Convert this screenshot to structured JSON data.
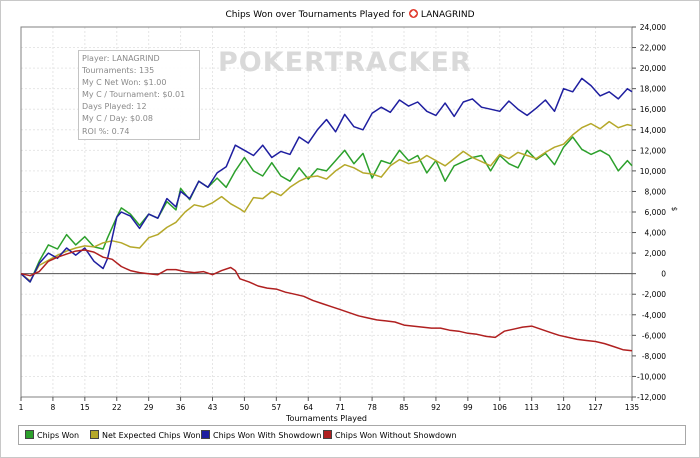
{
  "chart_data": {
    "type": "line",
    "title": "Chips Won over Tournaments Played for",
    "player_badge": "LANAGRIND",
    "xlabel": "Tournaments Played",
    "ylabel": "$",
    "xlim": [
      1,
      135
    ],
    "ylim": [
      -12000,
      24000
    ],
    "x_ticks": [
      1,
      8,
      15,
      22,
      29,
      36,
      43,
      50,
      57,
      64,
      71,
      78,
      85,
      92,
      99,
      106,
      113,
      120,
      127,
      135
    ],
    "y_ticks": [
      -12000,
      -10000,
      -8000,
      -6000,
      -4000,
      -2000,
      0,
      2000,
      4000,
      6000,
      8000,
      10000,
      12000,
      14000,
      16000,
      18000,
      20000,
      22000,
      24000
    ],
    "y_tick_labels": [
      "-12,000",
      "-10,000",
      "-8,000",
      "-6,000",
      "-4,000",
      "-2,000",
      "0",
      "2,000",
      "4,000",
      "6,000",
      "8,000",
      "10,000",
      "12,000",
      "14,000",
      "16,000",
      "18,000",
      "20,000",
      "22,000",
      "24,000"
    ],
    "grid": true,
    "series": [
      {
        "name": "Chips Won",
        "color": "#2ca02c",
        "points": [
          [
            1,
            0
          ],
          [
            3,
            -800
          ],
          [
            5,
            1200
          ],
          [
            7,
            2800
          ],
          [
            9,
            2400
          ],
          [
            11,
            3800
          ],
          [
            13,
            2800
          ],
          [
            15,
            3600
          ],
          [
            17,
            2600
          ],
          [
            19,
            2400
          ],
          [
            20,
            3500
          ],
          [
            22,
            5500
          ],
          [
            23,
            6400
          ],
          [
            25,
            5800
          ],
          [
            27,
            4700
          ],
          [
            29,
            5800
          ],
          [
            31,
            5400
          ],
          [
            33,
            7000
          ],
          [
            35,
            6200
          ],
          [
            36,
            8300
          ],
          [
            38,
            7200
          ],
          [
            40,
            9000
          ],
          [
            42,
            8400
          ],
          [
            44,
            9300
          ],
          [
            46,
            8400
          ],
          [
            48,
            10000
          ],
          [
            50,
            11300
          ],
          [
            52,
            10000
          ],
          [
            54,
            9500
          ],
          [
            56,
            10800
          ],
          [
            58,
            9500
          ],
          [
            60,
            9000
          ],
          [
            62,
            10300
          ],
          [
            64,
            9200
          ],
          [
            66,
            10200
          ],
          [
            68,
            10000
          ],
          [
            70,
            11000
          ],
          [
            72,
            12000
          ],
          [
            74,
            10700
          ],
          [
            76,
            11700
          ],
          [
            78,
            9300
          ],
          [
            80,
            11000
          ],
          [
            82,
            10700
          ],
          [
            84,
            12000
          ],
          [
            86,
            11000
          ],
          [
            88,
            11500
          ],
          [
            90,
            9800
          ],
          [
            92,
            11000
          ],
          [
            94,
            9000
          ],
          [
            96,
            10500
          ],
          [
            98,
            10900
          ],
          [
            100,
            11300
          ],
          [
            102,
            11500
          ],
          [
            104,
            10000
          ],
          [
            106,
            11500
          ],
          [
            108,
            10700
          ],
          [
            110,
            10300
          ],
          [
            112,
            12000
          ],
          [
            114,
            11100
          ],
          [
            116,
            11700
          ],
          [
            118,
            10600
          ],
          [
            120,
            12300
          ],
          [
            122,
            13300
          ],
          [
            124,
            12100
          ],
          [
            126,
            11600
          ],
          [
            128,
            12000
          ],
          [
            130,
            11500
          ],
          [
            132,
            10000
          ],
          [
            134,
            11000
          ],
          [
            135,
            10500
          ]
        ]
      },
      {
        "name": "Net Expected Chips Won",
        "color": "#b5a82a",
        "points": [
          [
            1,
            0
          ],
          [
            3,
            -700
          ],
          [
            5,
            800
          ],
          [
            7,
            1300
          ],
          [
            9,
            1800
          ],
          [
            11,
            2200
          ],
          [
            13,
            2500
          ],
          [
            15,
            2700
          ],
          [
            17,
            2600
          ],
          [
            19,
            3000
          ],
          [
            21,
            3200
          ],
          [
            23,
            3000
          ],
          [
            25,
            2600
          ],
          [
            27,
            2500
          ],
          [
            29,
            3500
          ],
          [
            31,
            3800
          ],
          [
            33,
            4500
          ],
          [
            35,
            5000
          ],
          [
            37,
            6000
          ],
          [
            39,
            6700
          ],
          [
            41,
            6500
          ],
          [
            43,
            6900
          ],
          [
            45,
            7500
          ],
          [
            47,
            6800
          ],
          [
            49,
            6300
          ],
          [
            50,
            6000
          ],
          [
            52,
            7400
          ],
          [
            54,
            7300
          ],
          [
            56,
            8000
          ],
          [
            58,
            7600
          ],
          [
            60,
            8400
          ],
          [
            62,
            9000
          ],
          [
            64,
            9400
          ],
          [
            66,
            9500
          ],
          [
            68,
            9200
          ],
          [
            70,
            10000
          ],
          [
            72,
            10600
          ],
          [
            74,
            10300
          ],
          [
            76,
            9800
          ],
          [
            78,
            9700
          ],
          [
            80,
            9400
          ],
          [
            82,
            10500
          ],
          [
            84,
            11100
          ],
          [
            86,
            10700
          ],
          [
            88,
            10900
          ],
          [
            90,
            11500
          ],
          [
            92,
            11000
          ],
          [
            94,
            10500
          ],
          [
            96,
            11200
          ],
          [
            98,
            11900
          ],
          [
            100,
            11300
          ],
          [
            102,
            10900
          ],
          [
            104,
            10500
          ],
          [
            106,
            11600
          ],
          [
            108,
            11200
          ],
          [
            110,
            11800
          ],
          [
            112,
            11500
          ],
          [
            114,
            11200
          ],
          [
            116,
            11800
          ],
          [
            118,
            12300
          ],
          [
            120,
            12600
          ],
          [
            122,
            13500
          ],
          [
            124,
            14200
          ],
          [
            126,
            14600
          ],
          [
            128,
            14100
          ],
          [
            130,
            14800
          ],
          [
            132,
            14200
          ],
          [
            134,
            14500
          ],
          [
            135,
            14400
          ]
        ]
      },
      {
        "name": "Chips Won With Showdown",
        "color": "#1f1fa0",
        "points": [
          [
            1,
            0
          ],
          [
            3,
            -800
          ],
          [
            5,
            1000
          ],
          [
            7,
            2000
          ],
          [
            9,
            1500
          ],
          [
            11,
            2500
          ],
          [
            13,
            1800
          ],
          [
            15,
            2500
          ],
          [
            17,
            1200
          ],
          [
            19,
            500
          ],
          [
            20,
            1500
          ],
          [
            22,
            5500
          ],
          [
            23,
            6000
          ],
          [
            25,
            5600
          ],
          [
            27,
            4400
          ],
          [
            29,
            5800
          ],
          [
            31,
            5400
          ],
          [
            33,
            7300
          ],
          [
            35,
            6500
          ],
          [
            36,
            8000
          ],
          [
            38,
            7300
          ],
          [
            40,
            9000
          ],
          [
            42,
            8400
          ],
          [
            44,
            9800
          ],
          [
            46,
            10400
          ],
          [
            48,
            12500
          ],
          [
            50,
            12000
          ],
          [
            52,
            11500
          ],
          [
            54,
            12500
          ],
          [
            56,
            11300
          ],
          [
            58,
            11900
          ],
          [
            60,
            11600
          ],
          [
            62,
            13300
          ],
          [
            64,
            12700
          ],
          [
            66,
            14000
          ],
          [
            68,
            15000
          ],
          [
            70,
            13800
          ],
          [
            72,
            15500
          ],
          [
            74,
            14300
          ],
          [
            76,
            14000
          ],
          [
            78,
            15600
          ],
          [
            80,
            16200
          ],
          [
            82,
            15700
          ],
          [
            84,
            16900
          ],
          [
            86,
            16300
          ],
          [
            88,
            16700
          ],
          [
            90,
            15800
          ],
          [
            92,
            15400
          ],
          [
            94,
            16600
          ],
          [
            96,
            15300
          ],
          [
            98,
            16700
          ],
          [
            100,
            17000
          ],
          [
            102,
            16200
          ],
          [
            104,
            16000
          ],
          [
            106,
            15800
          ],
          [
            108,
            16800
          ],
          [
            110,
            16000
          ],
          [
            112,
            15400
          ],
          [
            114,
            16100
          ],
          [
            116,
            16900
          ],
          [
            118,
            15800
          ],
          [
            120,
            18000
          ],
          [
            122,
            17700
          ],
          [
            124,
            19000
          ],
          [
            126,
            18300
          ],
          [
            128,
            17300
          ],
          [
            130,
            17700
          ],
          [
            132,
            17000
          ],
          [
            134,
            18000
          ],
          [
            135,
            17700
          ]
        ]
      },
      {
        "name": "Chips Won Without Showdown",
        "color": "#b02020",
        "points": [
          [
            1,
            0
          ],
          [
            3,
            -200
          ],
          [
            5,
            200
          ],
          [
            7,
            1200
          ],
          [
            9,
            1600
          ],
          [
            11,
            1900
          ],
          [
            13,
            2200
          ],
          [
            15,
            2300
          ],
          [
            17,
            2100
          ],
          [
            19,
            1600
          ],
          [
            21,
            1400
          ],
          [
            23,
            700
          ],
          [
            25,
            300
          ],
          [
            27,
            100
          ],
          [
            29,
            0
          ],
          [
            31,
            -100
          ],
          [
            33,
            400
          ],
          [
            35,
            400
          ],
          [
            37,
            200
          ],
          [
            39,
            100
          ],
          [
            41,
            200
          ],
          [
            43,
            -100
          ],
          [
            45,
            300
          ],
          [
            47,
            600
          ],
          [
            48,
            300
          ],
          [
            49,
            -500
          ],
          [
            51,
            -800
          ],
          [
            53,
            -1200
          ],
          [
            55,
            -1400
          ],
          [
            57,
            -1500
          ],
          [
            59,
            -1800
          ],
          [
            61,
            -2000
          ],
          [
            63,
            -2200
          ],
          [
            65,
            -2600
          ],
          [
            67,
            -2900
          ],
          [
            69,
            -3200
          ],
          [
            71,
            -3500
          ],
          [
            73,
            -3800
          ],
          [
            75,
            -4100
          ],
          [
            77,
            -4300
          ],
          [
            79,
            -4500
          ],
          [
            81,
            -4600
          ],
          [
            83,
            -4700
          ],
          [
            85,
            -5000
          ],
          [
            87,
            -5100
          ],
          [
            89,
            -5200
          ],
          [
            91,
            -5300
          ],
          [
            93,
            -5300
          ],
          [
            95,
            -5500
          ],
          [
            97,
            -5600
          ],
          [
            99,
            -5800
          ],
          [
            101,
            -5900
          ],
          [
            103,
            -6100
          ],
          [
            105,
            -6200
          ],
          [
            107,
            -5600
          ],
          [
            109,
            -5400
          ],
          [
            111,
            -5200
          ],
          [
            113,
            -5100
          ],
          [
            115,
            -5400
          ],
          [
            117,
            -5700
          ],
          [
            119,
            -6000
          ],
          [
            121,
            -6200
          ],
          [
            123,
            -6400
          ],
          [
            125,
            -6500
          ],
          [
            127,
            -6600
          ],
          [
            129,
            -6800
          ],
          [
            131,
            -7100
          ],
          [
            133,
            -7400
          ],
          [
            135,
            -7500
          ]
        ]
      }
    ]
  },
  "stats_box": {
    "lines": [
      "Player: LANAGRIND",
      "Tournaments: 135",
      "My C Net Won: $1.00",
      "My C / Tournament: $0.01",
      "Days Played: 12",
      "My C / Day: $0.08",
      "ROI %: 0.74"
    ]
  },
  "watermark": "POKERTRACKER"
}
